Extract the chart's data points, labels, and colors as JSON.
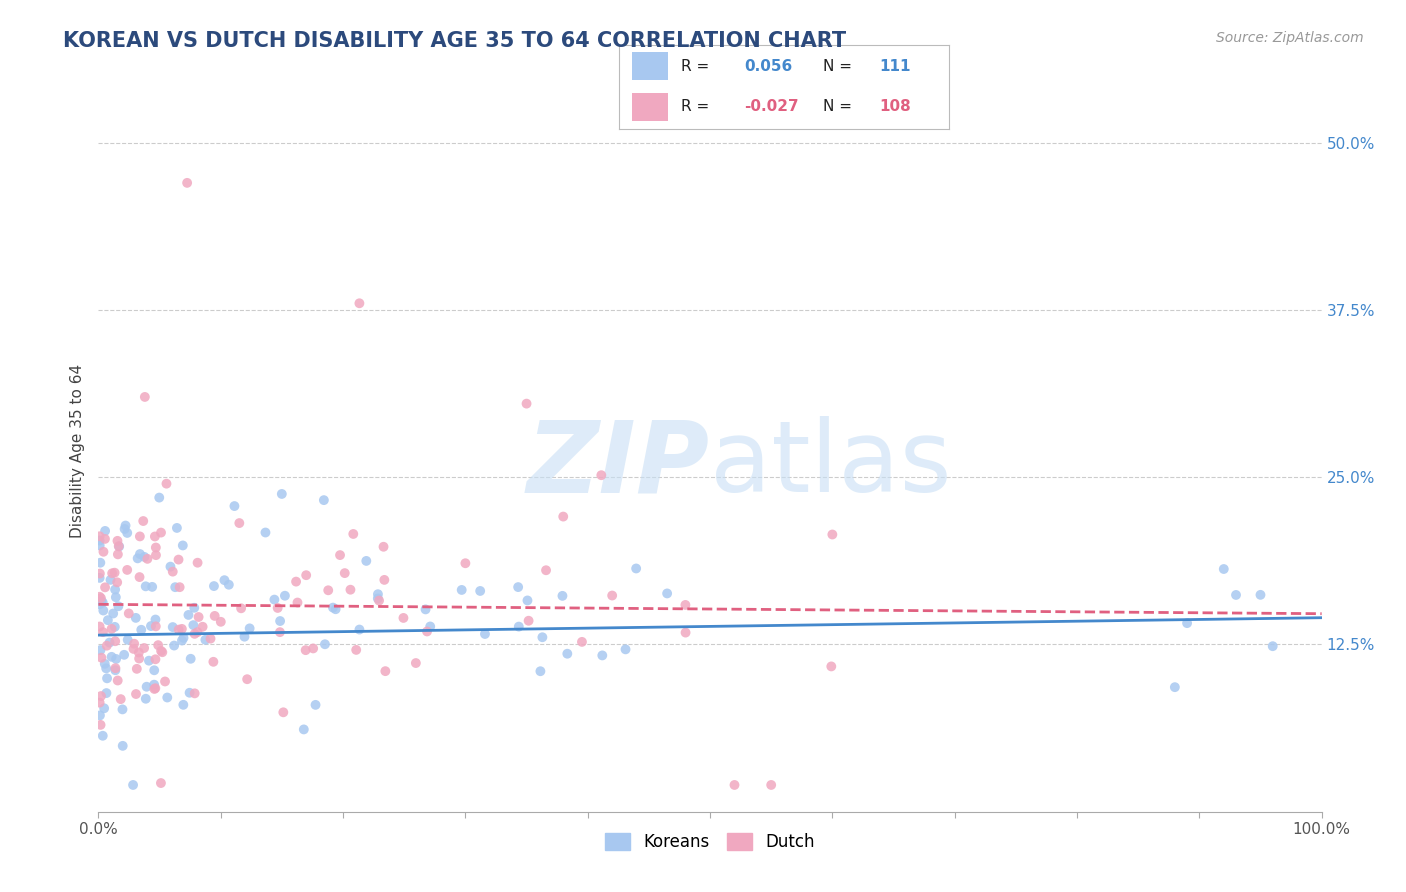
{
  "title": "KOREAN VS DUTCH DISABILITY AGE 35 TO 64 CORRELATION CHART",
  "source": "Source: ZipAtlas.com",
  "ylabel": "Disability Age 35 to 64",
  "xlim": [
    0.0,
    1.0
  ],
  "ylim": [
    0.0,
    0.54
  ],
  "y_ticks": [
    0.125,
    0.25,
    0.375,
    0.5
  ],
  "y_tick_labels": [
    "12.5%",
    "25.0%",
    "37.5%",
    "50.0%"
  ],
  "korean_color": "#a8c8f0",
  "dutch_color": "#f0a8c0",
  "korean_line_color": "#4488cc",
  "dutch_line_color": "#e06080",
  "legend_R_korean": "0.056",
  "legend_N_korean": "111",
  "legend_R_dutch": "-0.027",
  "legend_N_dutch": "108",
  "background_color": "#ffffff",
  "grid_color": "#cccccc",
  "title_color": "#2c4a7c",
  "watermark_color": "#c8dff5",
  "korean_seed": 42,
  "dutch_seed": 7
}
